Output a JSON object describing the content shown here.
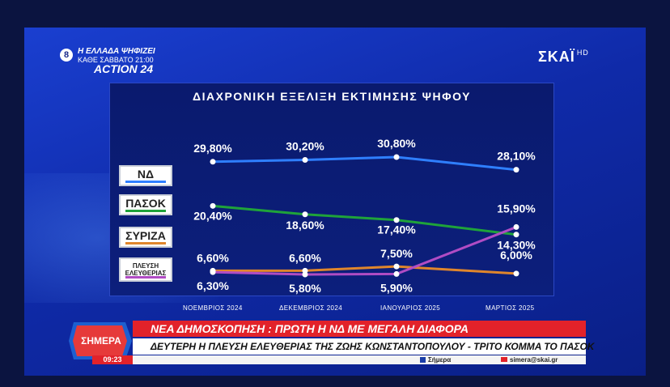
{
  "broadcast": {
    "channel_number": "8",
    "promo_line1": "Η ΕΛΛΑΔΑ ΨΗΦΙΖΕΙ",
    "promo_line2": "ΚΑΘΕ ΣΑΒΒΑΤΟ 21:00",
    "promo_line3": "ACTION 24",
    "network": "ΣΚΑΪ",
    "network_suffix": "HD"
  },
  "chart_data": {
    "type": "line",
    "title": "ΔΙΑΧΡΟΝΙΚΗ ΕΞΕΛΙΞΗ ΕΚΤΙΜΗΣΗΣ ΨΗΦΟΥ",
    "categories": [
      "ΝΟΕΜΒΡΙΟΣ 2024",
      "ΔΕΚΕΜΒΡΙΟΣ 2024",
      "ΙΑΝΟΥΑΡΙΟΣ 2025",
      "ΜΑΡΤΙΟΣ 2025"
    ],
    "series": [
      {
        "name": "ΝΔ",
        "color": "#2f7fff",
        "values": [
          29.8,
          30.2,
          30.8,
          28.1
        ],
        "labels": [
          "29,80%",
          "30,20%",
          "30,80%",
          "28,10%"
        ]
      },
      {
        "name": "ΠΑΣΟΚ",
        "color": "#1fa33a",
        "values": [
          20.4,
          18.6,
          17.4,
          14.3
        ],
        "labels": [
          "20,40%",
          "18,60%",
          "17,40%",
          "14,30%"
        ]
      },
      {
        "name": "ΣΥΡΙΖΑ",
        "color": "#e0862c",
        "values": [
          6.6,
          6.6,
          7.5,
          6.0
        ],
        "labels": [
          "6,60%",
          "6,60%",
          "7,50%",
          "6,00%"
        ]
      },
      {
        "name": "ΠΛΕΥΣΗ ΕΛΕΥΘΕΡΙΑΣ",
        "color": "#b04cc4",
        "values": [
          6.3,
          5.8,
          5.9,
          15.9
        ],
        "labels": [
          "6,30%",
          "5,80%",
          "5,90%",
          "15,90%"
        ]
      }
    ],
    "legend": [
      "ΝΔ",
      "ΠΑΣΟΚ",
      "ΣΥΡΙΖΑ",
      "ΠΛΕΥΣΗ ΕΛΕΥΘΕΡΙΑΣ"
    ],
    "legend_placement": "left",
    "grid": false
  },
  "ticker": {
    "show_logo": "ΣΗΜΕΡΑ",
    "headline": "ΝΕΑ ΔΗΜΟΣΚΟΠΗΣΗ : ΠΡΩΤΗ Η ΝΔ ΜΕ ΜΕΓΑΛΗ ΔΙΑΦΟΡΑ",
    "subheadline": "ΔΕΥΤΕΡΗ Η ΠΛΕΥΣΗ ΕΛΕΥΘΕΡΙΑΣ ΤΗΣ ΖΩΗΣ ΚΩΝΣΤΑΝΤΟΠΟΥΛΟΥ - ΤΡΙΤΟ ΚΟΜΜΑ ΤΟ ΠΑΣΟΚ",
    "time": "09:23",
    "facebook": "Σήμερα",
    "email": "simera@skai.gr"
  }
}
